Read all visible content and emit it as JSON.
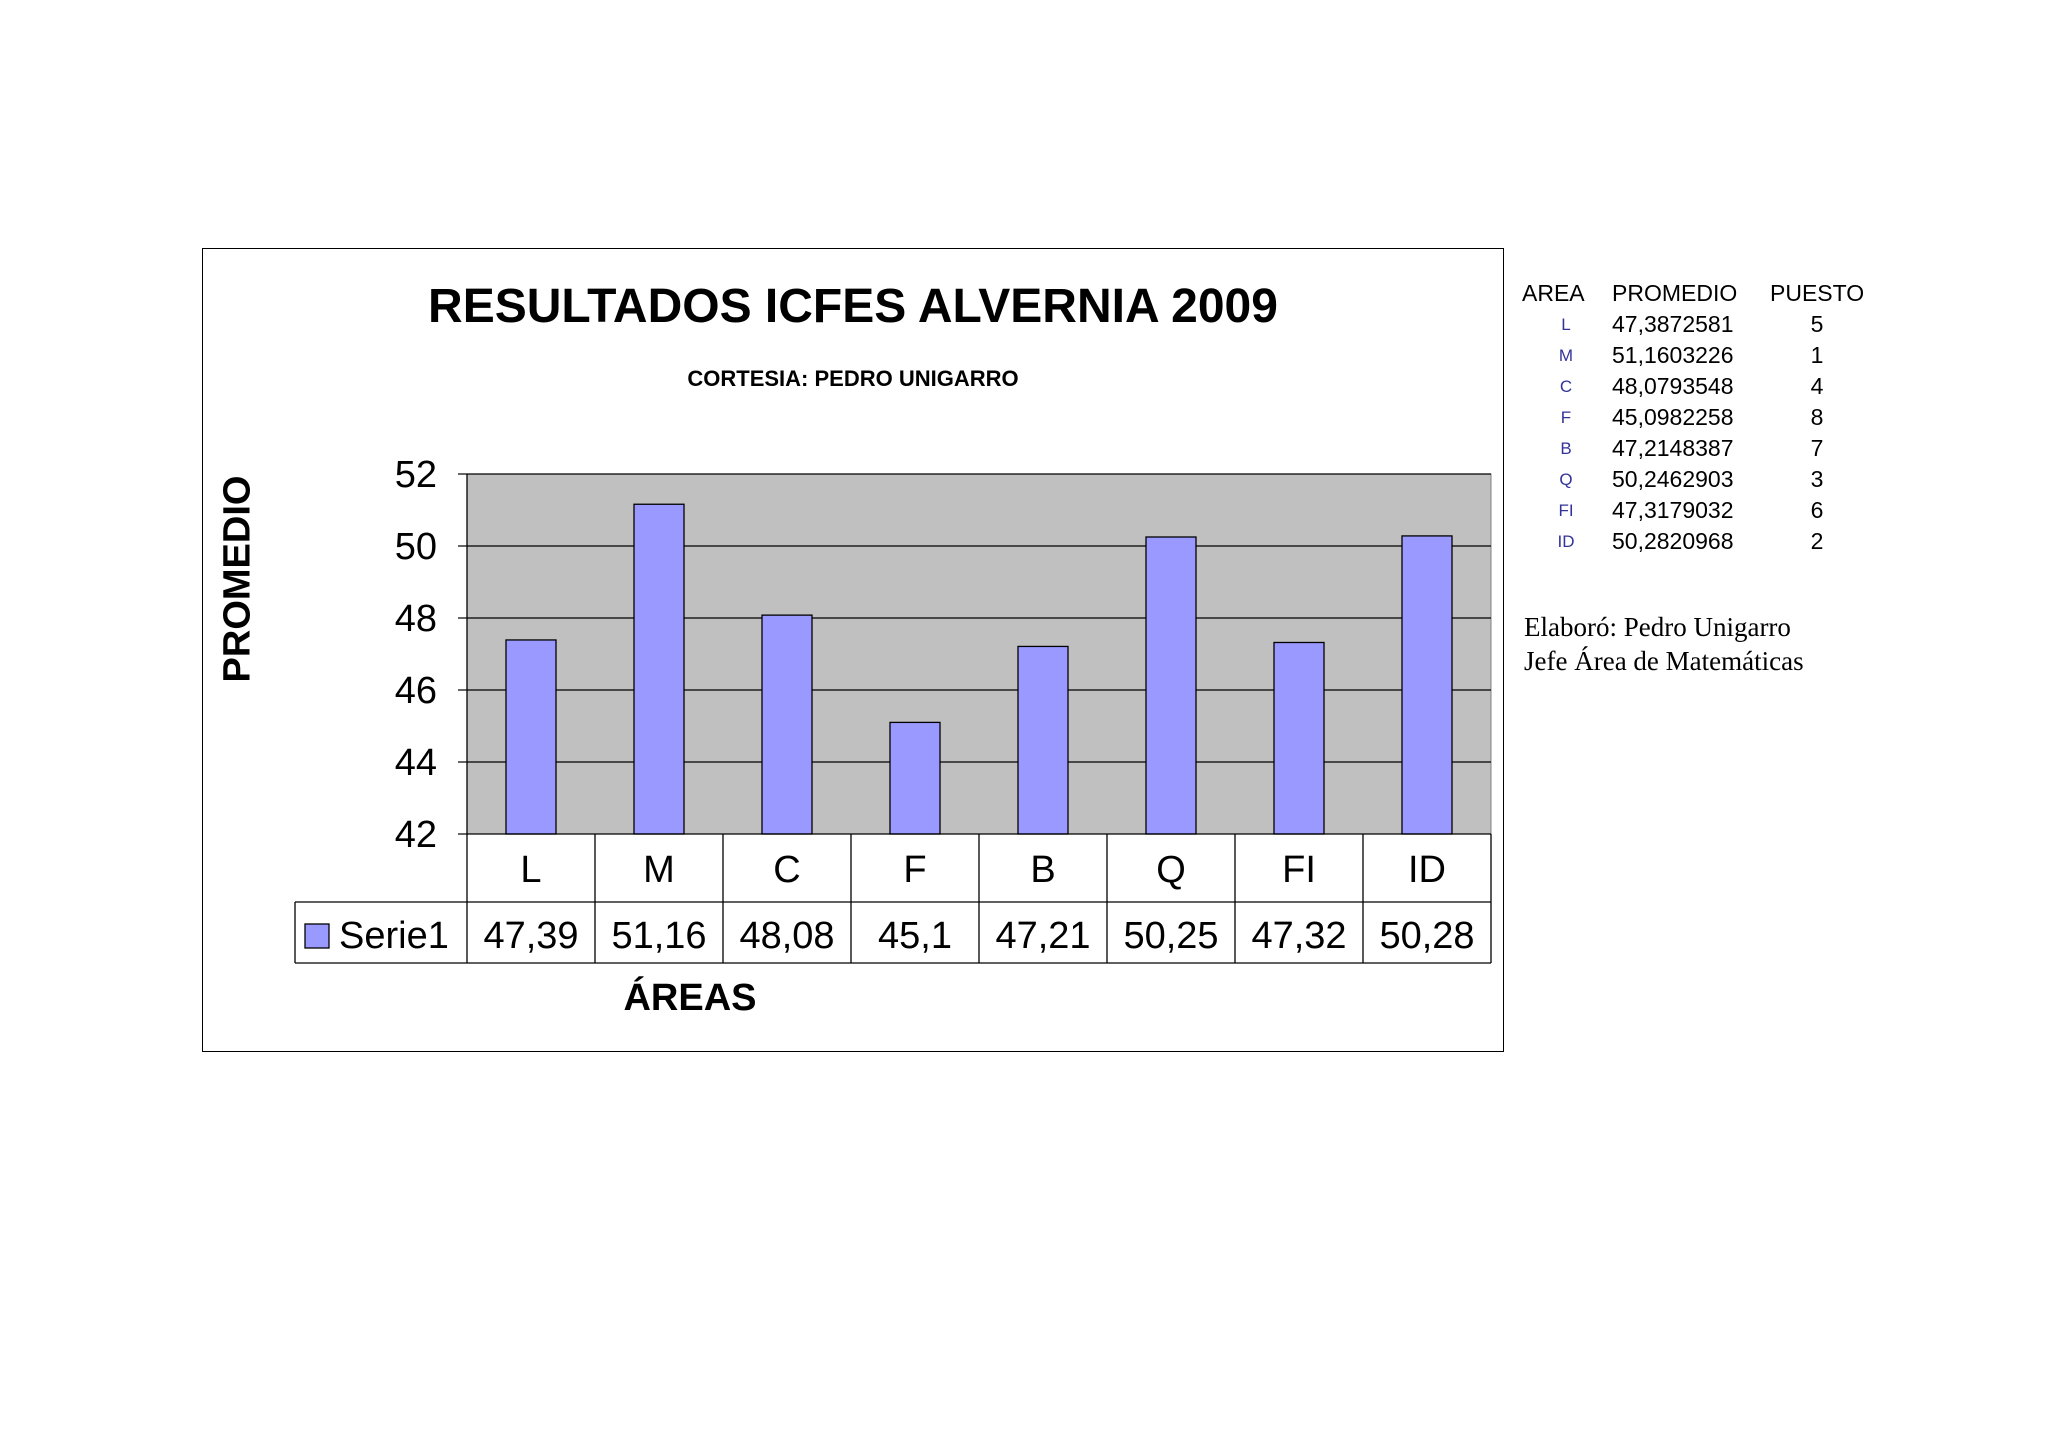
{
  "chart_data": {
    "type": "bar",
    "title": "RESULTADOS ICFES ALVERNIA 2009",
    "subtitle": "CORTESIA:  PEDRO UNIGARRO",
    "xlabel": "ÁREAS",
    "ylabel": "PROMEDIO",
    "categories": [
      "L",
      "M",
      "C",
      "F",
      "B",
      "Q",
      "FI",
      "ID"
    ],
    "series": [
      {
        "name": "Serie1",
        "values": [
          47.39,
          51.16,
          48.08,
          45.1,
          47.21,
          50.25,
          47.32,
          50.28
        ],
        "labels": [
          "47,39",
          "51,16",
          "48,08",
          "45,1",
          "47,21",
          "50,25",
          "47,32",
          "50,28"
        ],
        "color": "#9999ff"
      }
    ],
    "ylim": [
      42,
      52
    ],
    "yticks": [
      "42",
      "44",
      "46",
      "48",
      "50",
      "52"
    ],
    "grid": true,
    "plot_background": "#c0c0c0",
    "legend": "data-table"
  },
  "side_table": {
    "headers": [
      "AREA",
      "PROMEDIO",
      "PUESTO"
    ],
    "rows": [
      {
        "area": "L",
        "promedio": "47,3872581",
        "puesto": "5"
      },
      {
        "area": "M",
        "promedio": "51,1603226",
        "puesto": "1"
      },
      {
        "area": "C",
        "promedio": "48,0793548",
        "puesto": "4"
      },
      {
        "area": "F",
        "promedio": "45,0982258",
        "puesto": "8"
      },
      {
        "area": "B",
        "promedio": "47,2148387",
        "puesto": "7"
      },
      {
        "area": "Q",
        "promedio": "50,2462903",
        "puesto": "3"
      },
      {
        "area": "FI",
        "promedio": "47,3179032",
        "puesto": "6"
      },
      {
        "area": "ID",
        "promedio": "50,2820968",
        "puesto": "2"
      }
    ]
  },
  "note": {
    "line1": "Elaboró: Pedro Unigarro",
    "line2": "Jefe Área de Matemáticas"
  }
}
